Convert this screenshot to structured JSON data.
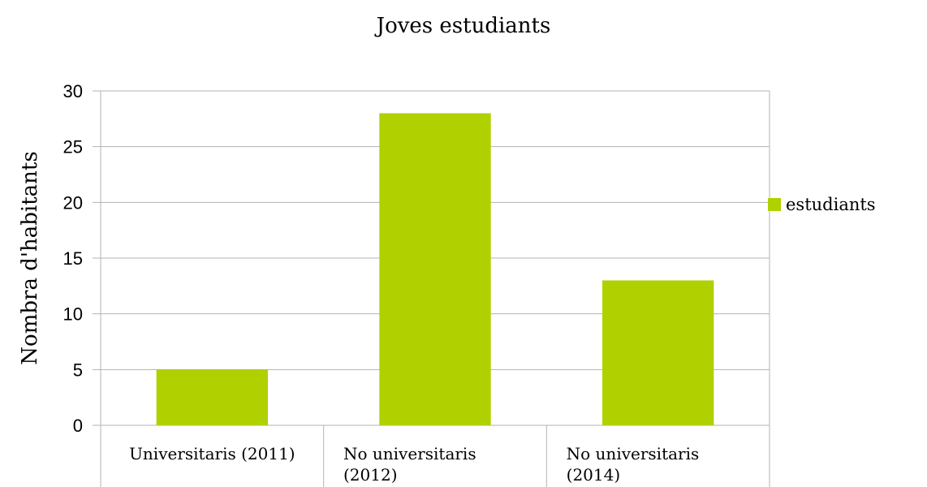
{
  "chart_data": {
    "type": "bar",
    "title": "Joves estudiants",
    "xlabel": "",
    "ylabel": "Nombra d'habitants",
    "categories": [
      "Universitaris (2011)",
      "No universitaris (2012)",
      "No universitaris (2014)"
    ],
    "category_lines": [
      [
        "Universitaris (2011)"
      ],
      [
        "No universitaris",
        "(2012)"
      ],
      [
        "No universitaris",
        "(2014)"
      ]
    ],
    "series": [
      {
        "name": "estudiants",
        "values": [
          5,
          28,
          13
        ],
        "color": "#b0d000"
      }
    ],
    "ylim": [
      0,
      30
    ],
    "yticks": [
      0,
      5,
      10,
      15,
      20,
      25,
      30
    ],
    "grid": true,
    "legend_position": "right"
  }
}
